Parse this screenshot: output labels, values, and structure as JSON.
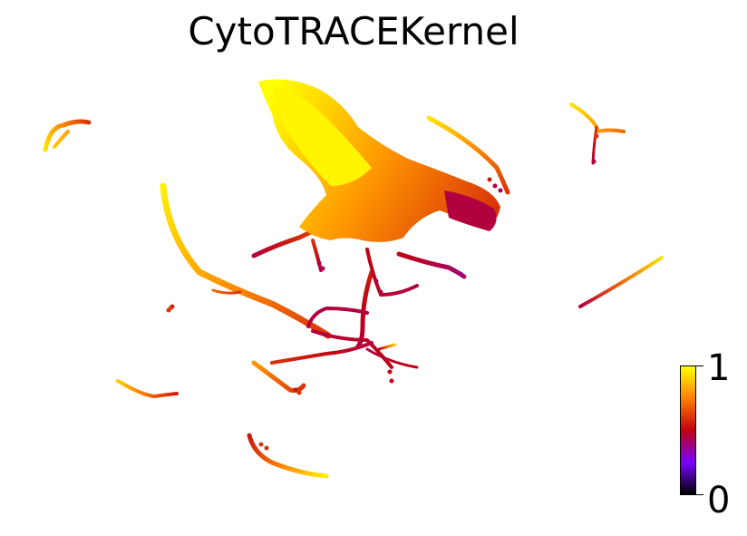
{
  "chart_data": {
    "type": "scatter",
    "title": "CytoTRACEKernel",
    "xlabel": "",
    "ylabel": "",
    "axes_visible": false,
    "colormap": "gnuplot",
    "colormap_stops": [
      "#000000",
      "#7a00ff",
      "#c0000f",
      "#ff8000",
      "#ffff00"
    ],
    "colorbar": {
      "min_label": "0",
      "max_label": "1",
      "range": [
        0,
        1
      ],
      "placement": "bottom-right"
    }
  }
}
